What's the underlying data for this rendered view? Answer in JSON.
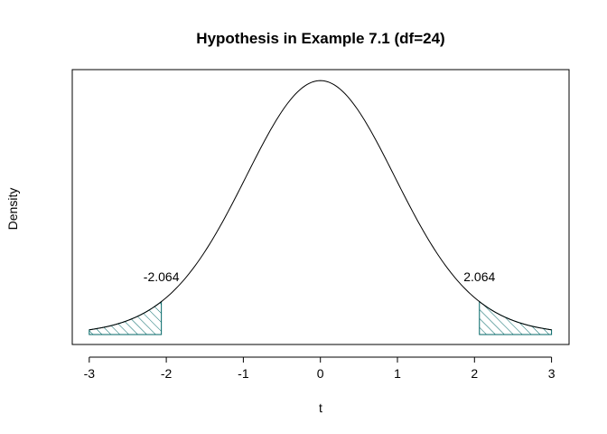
{
  "chart_data": {
    "type": "line",
    "title": "Hypothesis in Example 7.1 (df=24)",
    "xlabel": "t",
    "ylabel": "Density",
    "distribution": "Student t",
    "df": 24,
    "xlim": [
      -3,
      3
    ],
    "ylim": [
      0,
      0.395
    ],
    "x_ticks": [
      "-3",
      "-2",
      "-1",
      "0",
      "1",
      "2",
      "3"
    ],
    "y_ticks_shown": false,
    "curve_color": "#000000",
    "rejection_regions": [
      {
        "from": -3,
        "to": -2.064,
        "label": "-2.064"
      },
      {
        "from": 2.064,
        "to": 3,
        "label": "2.064"
      }
    ],
    "region_fill": "hatched",
    "region_color": "#006666",
    "grid": false,
    "legend": "none"
  }
}
